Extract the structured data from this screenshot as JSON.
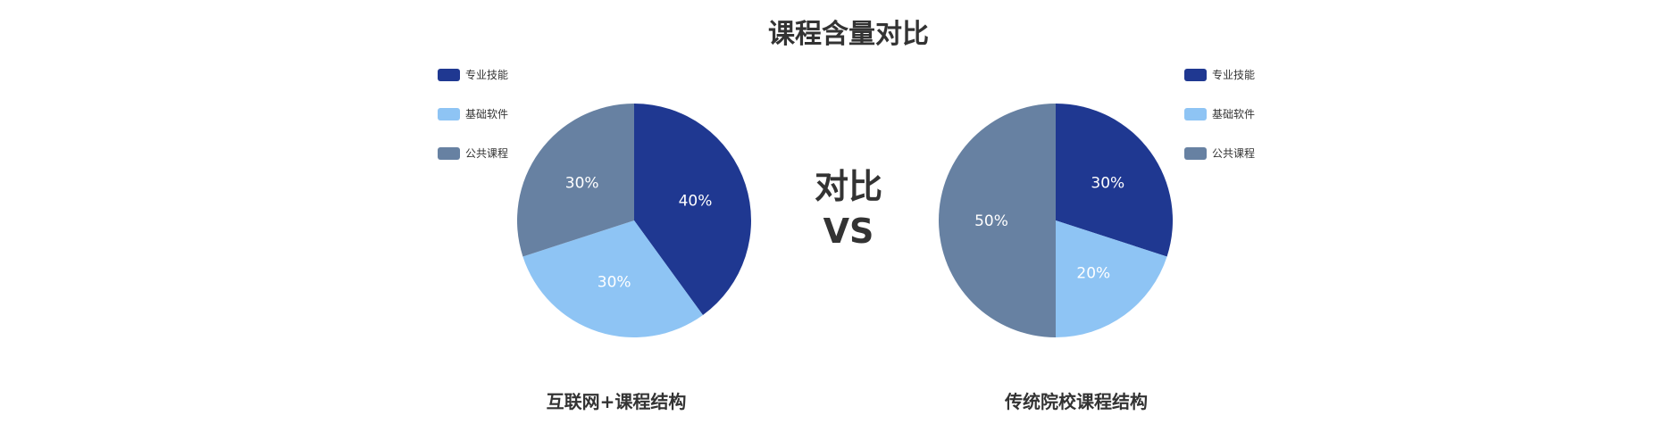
{
  "header": {
    "title": "课程含量对比"
  },
  "center": {
    "line1": "对比",
    "line2": "VS"
  },
  "chart_data": [
    {
      "type": "pie",
      "name": "internet",
      "caption": "互联网+课程结构",
      "legend_position": "left",
      "categories": [
        "专业技能",
        "基础软件",
        "公共课程"
      ],
      "values": [
        40,
        30,
        30
      ],
      "labels": [
        "40%",
        "30%",
        "30%"
      ],
      "colors": [
        "#1F3891",
        "#8EC4F4",
        "#6781A2"
      ],
      "start_angle": "12 o'clock",
      "direction": "clockwise"
    },
    {
      "type": "pie",
      "name": "traditional",
      "caption": "传统院校课程结构",
      "legend_position": "right",
      "categories": [
        "专业技能",
        "基础软件",
        "公共课程"
      ],
      "values": [
        30,
        20,
        50
      ],
      "labels": [
        "30%",
        "20%",
        "50%"
      ],
      "colors": [
        "#1F3891",
        "#8EC4F4",
        "#6781A2"
      ],
      "start_angle": "12 o'clock",
      "direction": "clockwise"
    }
  ]
}
